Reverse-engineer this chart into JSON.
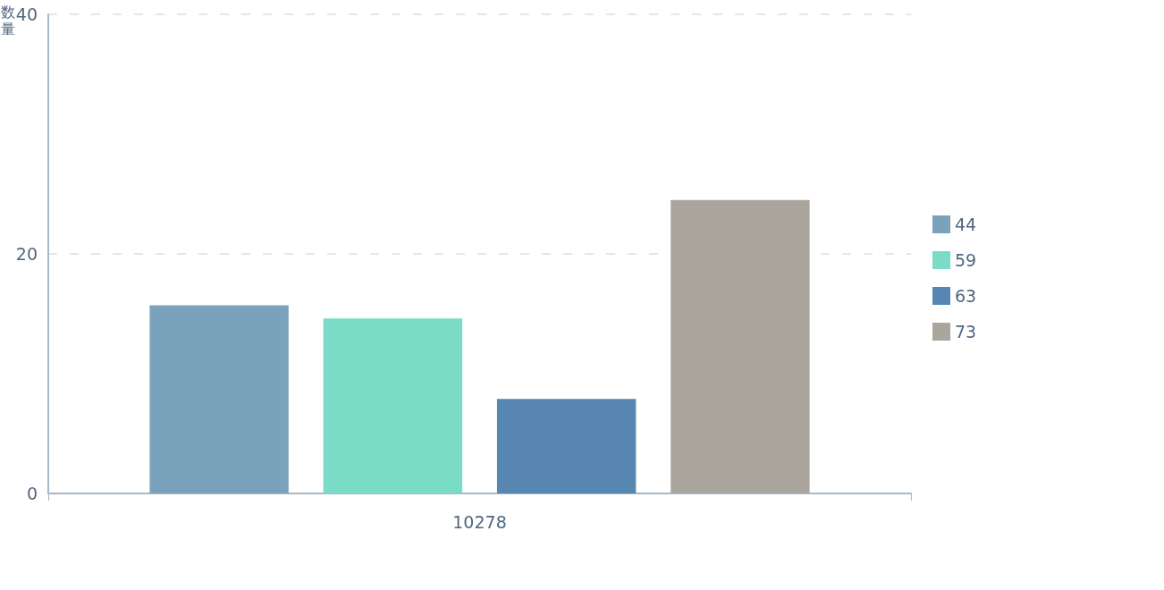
{
  "chart_data": {
    "type": "bar",
    "ylabel": "数量",
    "categories": [
      "10278"
    ],
    "series": [
      {
        "name": "44",
        "color": "#7ba2bc",
        "values": [
          15.7
        ]
      },
      {
        "name": "59",
        "color": "#7adcc6",
        "values": [
          14.6
        ]
      },
      {
        "name": "63",
        "color": "#5787b0",
        "values": [
          7.9
        ]
      },
      {
        "name": "73",
        "color": "#aaa69e",
        "values": [
          24.5
        ]
      }
    ],
    "ylim": [
      0,
      40
    ],
    "yticks": [
      0,
      20,
      40
    ],
    "grid": "y",
    "legend": "right"
  }
}
